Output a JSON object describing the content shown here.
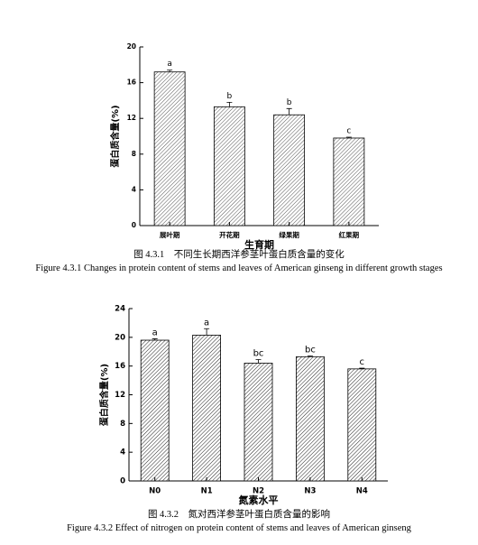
{
  "chart_data": [
    {
      "type": "bar",
      "categories": [
        "展叶期",
        "开花期",
        "绿果期",
        "红果期"
      ],
      "values": [
        17.2,
        13.3,
        12.4,
        9.8
      ],
      "errors": [
        0.2,
        0.5,
        0.7,
        0.1
      ],
      "annotations": [
        "a",
        "b",
        "b",
        "c"
      ],
      "x_label": "生育期",
      "y_label": "蛋白质含量(%)",
      "ylim": [
        0,
        20
      ],
      "yticks": [
        0,
        4,
        8,
        12,
        16,
        20
      ],
      "color": "#555555",
      "caption_cn": "图 4.3.1　不同生长期西洋参茎叶蛋白质含量的变化",
      "caption_en": "Figure 4.3.1    Changes in protein content of stems and leaves of American ginseng in different growth stages"
    },
    {
      "type": "bar",
      "categories": [
        "N0",
        "N1",
        "N2",
        "N3",
        "N4"
      ],
      "values": [
        19.6,
        20.3,
        16.4,
        17.3,
        15.6
      ],
      "errors": [
        0.2,
        0.9,
        0.5,
        0.1,
        0.1
      ],
      "annotations": [
        "a",
        "a",
        "bc",
        "bc",
        "c"
      ],
      "x_label": "氮素水平",
      "y_label": "蛋白质含量(%)",
      "ylim": [
        0,
        24
      ],
      "yticks": [
        0,
        4,
        8,
        12,
        16,
        20,
        24
      ],
      "color": "#222222",
      "caption_cn": "图 4.3.2　氮对西洋参茎叶蛋白质含量的影响",
      "caption_en": "Figure 4.3.2    Effect of nitrogen on protein content of stems and leaves of American ginseng"
    }
  ]
}
